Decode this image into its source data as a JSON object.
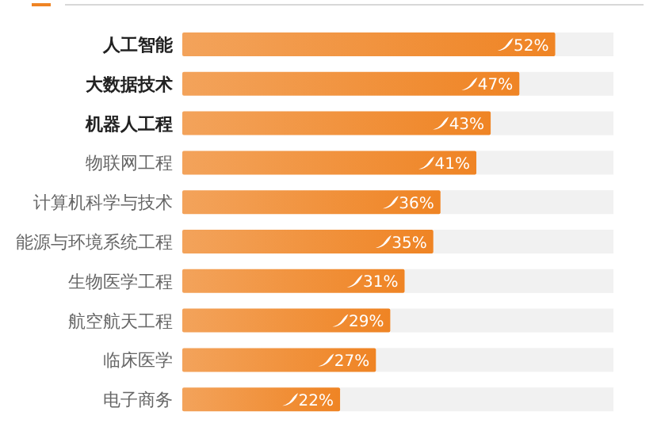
{
  "chart_data": {
    "type": "bar",
    "orientation": "horizontal",
    "categories": [
      "人工智能",
      "大数据技术",
      "机器人工程",
      "物联网工程",
      "计算机科学与技术",
      "能源与环境系统工程",
      "生物医学工程",
      "航空航天工程",
      "临床医学",
      "电子商务"
    ],
    "values": [
      52,
      47,
      43,
      41,
      36,
      35,
      31,
      29,
      27,
      22
    ],
    "value_labels": [
      "52%",
      "47%",
      "43%",
      "41%",
      "36%",
      "35%",
      "31%",
      "29%",
      "27%",
      "22%"
    ],
    "color": "#ef8424",
    "relative": false
  }
}
